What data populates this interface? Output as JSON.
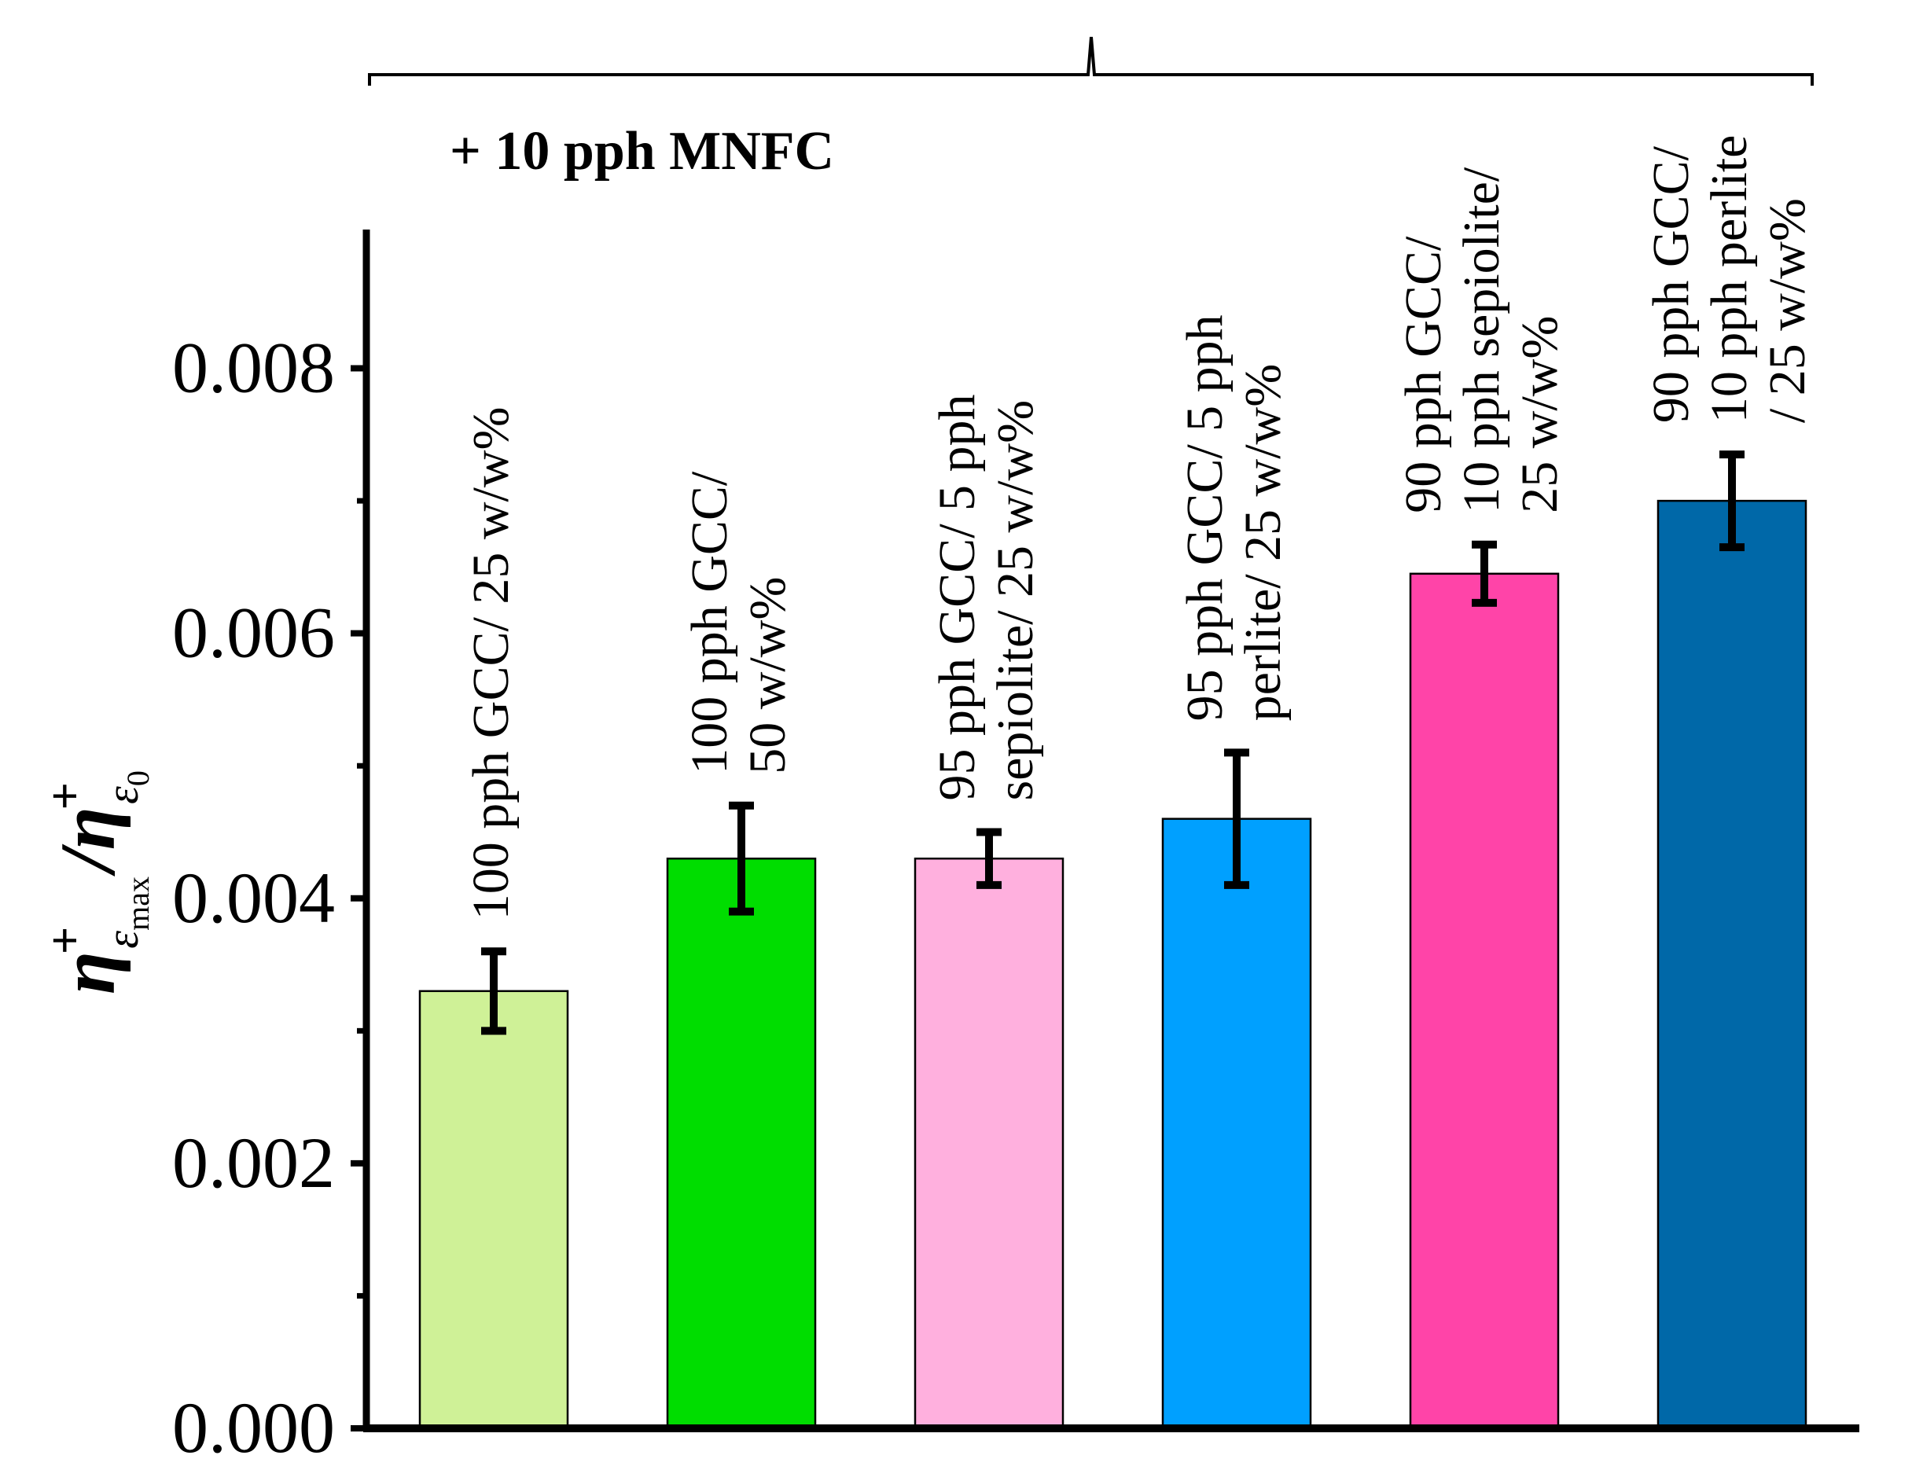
{
  "chart_data": {
    "type": "bar",
    "title": "",
    "xlabel": "",
    "ylabel": {
      "symbol": "η",
      "sup": "+",
      "sub1": "ε",
      "sub1_sub": "max",
      "separator": "/",
      "sub2": "ε",
      "sub2_sub": "0"
    },
    "ylim": [
      0,
      0.009
    ],
    "yticks": [
      0.0,
      0.002,
      0.004,
      0.006,
      0.008
    ],
    "ytick_labels": [
      "0.000",
      "0.002",
      "0.004",
      "0.006",
      "0.008"
    ],
    "minor_yticks": [
      0.001,
      0.003,
      0.005,
      0.007
    ],
    "bracket_label": "+ 10 pph MNFC",
    "categories": [
      {
        "lines": [
          "100 pph GCC/ 25 w/w%"
        ],
        "value": 0.0033,
        "error": 0.0003,
        "color": "#cff197"
      },
      {
        "lines": [
          "100 pph GCC/",
          "50 w/w%"
        ],
        "value": 0.0043,
        "error": 0.0004,
        "color": "#00dd00"
      },
      {
        "lines": [
          "95 pph GCC/ 5 pph",
          "sepiolite/ 25 w/w%"
        ],
        "value": 0.0043,
        "error": 0.0002,
        "color": "#ffb0de"
      },
      {
        "lines": [
          "95 pph GCC/ 5 pph",
          "perlite/ 25 w/w%"
        ],
        "value": 0.0046,
        "error": 0.0005,
        "color": "#00a0ff"
      },
      {
        "lines": [
          "90 pph GCC/",
          "10 pph sepiolite/",
          "25 w/w%"
        ],
        "value": 0.00645,
        "error": 0.00022,
        "color": "#ff44a8"
      },
      {
        "lines": [
          "90 pph GCC/",
          "10 pph perlite",
          "/ 25 w/w%"
        ],
        "value": 0.007,
        "error": 0.00035,
        "color": "#0068a8"
      }
    ]
  }
}
